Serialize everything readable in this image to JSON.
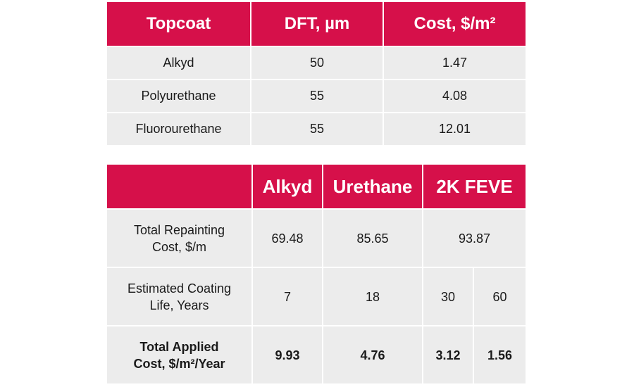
{
  "table1": {
    "headers": [
      "Topcoat",
      "DFT, µm",
      "Cost, $/m²"
    ],
    "rows": [
      [
        "Alkyd",
        "50",
        "1.47"
      ],
      [
        "Polyurethane",
        "55",
        "4.08"
      ],
      [
        "Fluorourethane",
        "55",
        "12.01"
      ]
    ]
  },
  "table2": {
    "headers": [
      "",
      "Alkyd",
      "Urethane",
      "2K FEVE"
    ],
    "rows": [
      {
        "label_line1": "Total Repainting",
        "label_line2": "Cost, $/m",
        "alkyd": "69.48",
        "urethane": "85.65",
        "feve": "93.87"
      },
      {
        "label_line1": "Estimated Coating",
        "label_line2": "Life, Years",
        "alkyd": "7",
        "urethane": "18",
        "feve_a": "30",
        "feve_b": "60"
      },
      {
        "label_line1": "Total Applied",
        "label_line2": "Cost, $/m²/Year",
        "alkyd": "9.93",
        "urethane": "4.76",
        "feve_a": "3.12",
        "feve_b": "1.56"
      }
    ]
  },
  "colors": {
    "header_bg": "#d6104a",
    "cell_bg": "#ececec"
  }
}
